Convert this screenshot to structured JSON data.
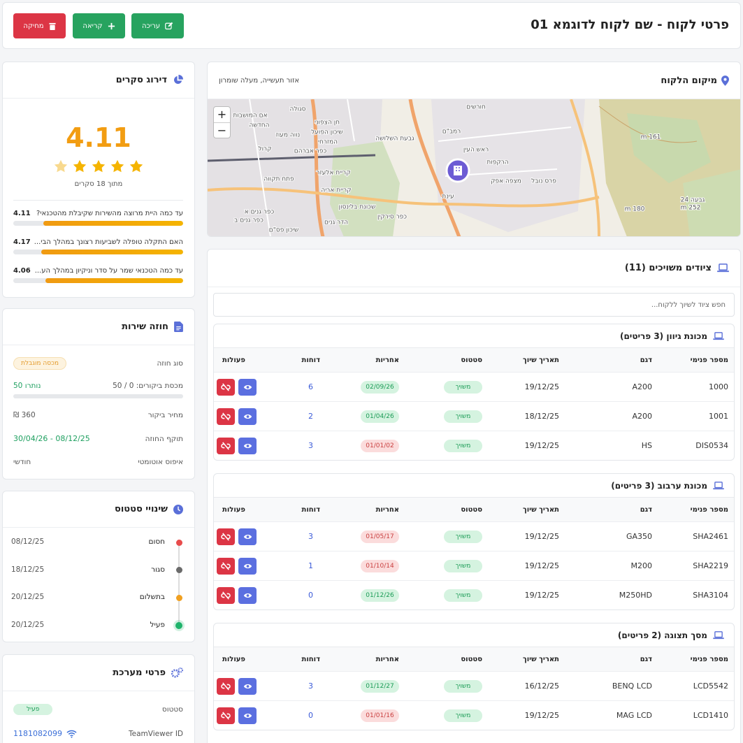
{
  "header": {
    "title": "פרטי לקוח - שם לקוח לדוגמא 01",
    "buttons": [
      "עריכה",
      "קריאה",
      "מחיקה"
    ]
  },
  "survey": {
    "title": "דירוג סקרים",
    "score": 4.11,
    "scale_max": 5,
    "count_label": "מתוך 18 סקרים",
    "questions": [
      {
        "text": "עד כמה היית מרוצה מהשירות שקיבלת מהטכנאי?",
        "score": 4.11
      },
      {
        "text": "האם התקלה טופלה לשביעות רצונך במהלך הבי...",
        "score": 4.17
      },
      {
        "text": "עד כמה הטכנאי שמר על סדר וניקיון במהלך הע...",
        "score": 4.06
      }
    ]
  },
  "contract": {
    "title": "חוזה שירות",
    "type_label": "סוג חוזה",
    "type_value": "מכסה מוגבלת",
    "quota": {
      "label": "מכסת ביקורים: 0 / 50",
      "remaining_label": "נותרו 50",
      "used": 0,
      "total": 50
    },
    "price_label": "מחיר ביקור",
    "price_value": "360 ₪",
    "validity_label": "תוקף החוזה",
    "validity_value": "08/12/25 - 30/04/26",
    "reset_label": "איפוס אוטומטי",
    "reset_value": "חודשי"
  },
  "status_changes": {
    "title": "שינויי סטטוס",
    "items": [
      {
        "status": "חסום",
        "date": "08/12/25",
        "color": "#e84c4c"
      },
      {
        "status": "סגור",
        "date": "18/12/25",
        "color": "#6b6b6b"
      },
      {
        "status": "בתשלום",
        "date": "20/12/25",
        "color": "#f0a020"
      },
      {
        "status": "פעיל",
        "date": "20/12/25",
        "color": "#1fb36b"
      }
    ]
  },
  "system": {
    "title": "פרטי מערכת",
    "status_label": "סטטוס",
    "status_value": "פעיל",
    "teamviewer_label": "TeamViewer ID",
    "teamviewer_value": "1181082099"
  },
  "location": {
    "title": "מיקום הלקוח",
    "address": "אזור תעשייה, מעלה שומרון",
    "zoom": [
      "+",
      "−"
    ],
    "map_labels": [
      "סגולה",
      "אם המושבות",
      "החדשה",
      "נווה מעוז",
      "חן הצפוני",
      "שיכון הפועל",
      "המזרחי",
      "כפר אברהם",
      "קרול",
      "גבעת השלושה",
      "קריית אלעזר",
      "קריית אריה",
      "פתח תקווה",
      "כפר גנים א",
      "כפר גנים ב",
      "הדר גנים",
      "שיכון פס\"ם",
      "שכונת בלינסון",
      "כפר סירקין",
      "רמב\"ם",
      "ראש העין",
      "הרקפות",
      "מצפה אפק",
      "פרס נובל",
      "עינת",
      "חורשים",
      "161 m",
      "180 m",
      "252 m",
      "גבעה 24"
    ]
  },
  "equipment": {
    "title": "ציודים משויכים (11)",
    "search_placeholder": "חפש ציוד לשיוך ללקוח...",
    "columns": [
      "מספר פנימי",
      "דגם",
      "תאריך שיוך",
      "סטטוס",
      "אחריות",
      "דוחות",
      "פעולות"
    ],
    "groups": [
      {
        "title": "מכונת גיוון (3 פריטים)",
        "rows": [
          {
            "id": "1000",
            "model": "A200",
            "date": "19/12/25",
            "status": "משויך",
            "warranty": "02/09/26",
            "warranty_color": "green",
            "reports": 6
          },
          {
            "id": "1001",
            "model": "A200",
            "date": "18/12/25",
            "status": "משויך",
            "warranty": "01/04/26",
            "warranty_color": "green",
            "reports": 2
          },
          {
            "id": "DIS0534",
            "model": "HS",
            "date": "19/12/25",
            "status": "משויך",
            "warranty": "01/01/02",
            "warranty_color": "red",
            "reports": 3
          }
        ]
      },
      {
        "title": "מכונת ערבוב (3 פריטים)",
        "rows": [
          {
            "id": "SHA2461",
            "model": "GA350",
            "date": "19/12/25",
            "status": "משויך",
            "warranty": "01/05/17",
            "warranty_color": "red",
            "reports": 3
          },
          {
            "id": "SHA2219",
            "model": "M200",
            "date": "19/12/25",
            "status": "משויך",
            "warranty": "01/10/14",
            "warranty_color": "red",
            "reports": 1
          },
          {
            "id": "SHA3104",
            "model": "M250HD",
            "date": "19/12/25",
            "status": "משויך",
            "warranty": "01/12/26",
            "warranty_color": "green",
            "reports": 0
          }
        ]
      },
      {
        "title": "מסך תצוגה (2 פריטים)",
        "rows": [
          {
            "id": "LCD5542",
            "model": "BENQ LCD",
            "date": "16/12/25",
            "status": "משויך",
            "warranty": "01/12/27",
            "warranty_color": "green",
            "reports": 3
          },
          {
            "id": "LCD1410",
            "model": "MAG LCD",
            "date": "19/12/25",
            "status": "משויך",
            "warranty": "01/01/16",
            "warranty_color": "red",
            "reports": 0
          }
        ]
      }
    ]
  }
}
